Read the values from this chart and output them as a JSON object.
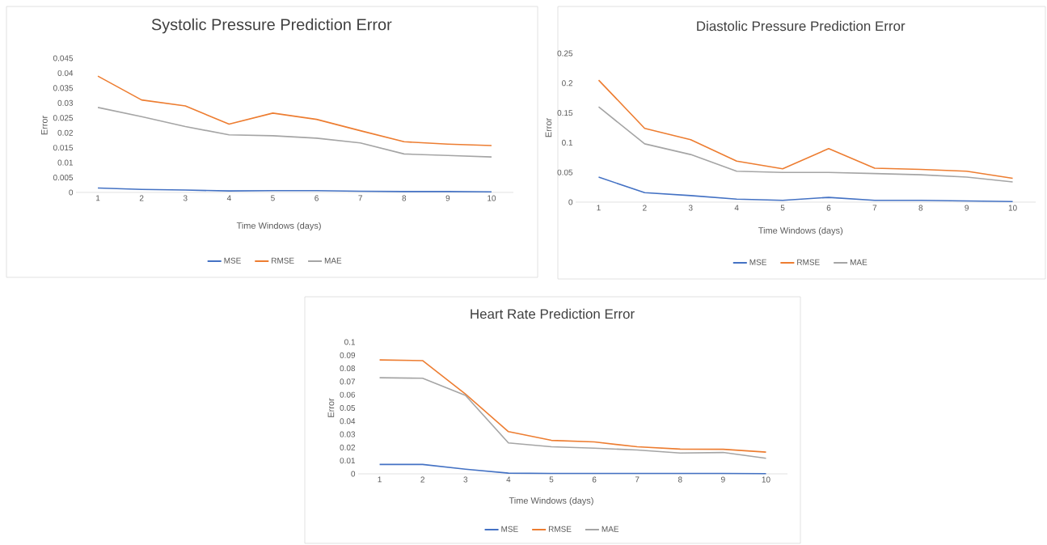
{
  "chart_data": [
    {
      "type": "line",
      "title": "Systolic Pressure Prediction Error",
      "xlabel": "Time Windows (days)",
      "ylabel": "Error",
      "categories": [
        "1",
        "2",
        "3",
        "4",
        "5",
        "6",
        "7",
        "8",
        "9",
        "10"
      ],
      "ylim": [
        0,
        0.045
      ],
      "yticks": [
        0,
        0.005,
        0.01,
        0.015,
        0.02,
        0.025,
        0.03,
        0.035,
        0.04,
        0.045
      ],
      "legend": "bottom",
      "marker": "none",
      "series": [
        {
          "name": "MSE",
          "color": "#4472c4",
          "values": [
            0.0015,
            0.001,
            0.0008,
            0.0005,
            0.0006,
            0.0006,
            0.0004,
            0.0003,
            0.0003,
            0.0002
          ]
        },
        {
          "name": "RMSE",
          "color": "#ed7d31",
          "values": [
            0.039,
            0.031,
            0.029,
            0.0229,
            0.0266,
            0.0245,
            0.0207,
            0.017,
            0.0162,
            0.0157
          ]
        },
        {
          "name": "MAE",
          "color": "#a5a5a5",
          "values": [
            0.0285,
            0.0254,
            0.0221,
            0.0193,
            0.019,
            0.0182,
            0.0166,
            0.0129,
            0.0124,
            0.0119
          ]
        }
      ]
    },
    {
      "type": "line",
      "title": "Diastolic Pressure Prediction Error",
      "xlabel": "Time Windows (days)",
      "ylabel": "Error",
      "categories": [
        "1",
        "2",
        "3",
        "4",
        "5",
        "6",
        "7",
        "8",
        "9",
        "10"
      ],
      "ylim": [
        0,
        0.25
      ],
      "yticks": [
        0,
        0.05,
        0.1,
        0.15,
        0.2,
        0.25
      ],
      "legend": "bottom",
      "marker": "none",
      "series": [
        {
          "name": "MSE",
          "color": "#4472c4",
          "values": [
            0.042,
            0.016,
            0.011,
            0.005,
            0.003,
            0.008,
            0.003,
            0.003,
            0.002,
            0.001
          ]
        },
        {
          "name": "RMSE",
          "color": "#ed7d31",
          "values": [
            0.205,
            0.124,
            0.105,
            0.069,
            0.056,
            0.09,
            0.057,
            0.055,
            0.052,
            0.04
          ]
        },
        {
          "name": "MAE",
          "color": "#a5a5a5",
          "values": [
            0.16,
            0.098,
            0.08,
            0.052,
            0.05,
            0.05,
            0.048,
            0.046,
            0.042,
            0.034
          ]
        }
      ]
    },
    {
      "type": "line",
      "title": "Heart Rate Prediction Error",
      "xlabel": "Time Windows (days)",
      "ylabel": "Error",
      "categories": [
        "1",
        "2",
        "3",
        "4",
        "5",
        "6",
        "7",
        "8",
        "9",
        "10"
      ],
      "ylim": [
        0,
        0.1
      ],
      "yticks": [
        0,
        0.01,
        0.02,
        0.03,
        0.04,
        0.05,
        0.06,
        0.07,
        0.08,
        0.09,
        0.1
      ],
      "legend": "bottom",
      "marker": "none",
      "series": [
        {
          "name": "MSE",
          "color": "#4472c4",
          "values": [
            0.0071,
            0.0071,
            0.0035,
            0.0005,
            0.0003,
            0.0003,
            0.0003,
            0.0003,
            0.0003,
            0.0001
          ]
        },
        {
          "name": "RMSE",
          "color": "#ed7d31",
          "values": [
            0.0864,
            0.0859,
            0.0605,
            0.032,
            0.0254,
            0.0242,
            0.0205,
            0.0188,
            0.0186,
            0.0165
          ]
        },
        {
          "name": "MAE",
          "color": "#a5a5a5",
          "values": [
            0.0729,
            0.0725,
            0.0595,
            0.0235,
            0.0205,
            0.0195,
            0.0181,
            0.0158,
            0.0162,
            0.0118
          ]
        }
      ]
    }
  ]
}
